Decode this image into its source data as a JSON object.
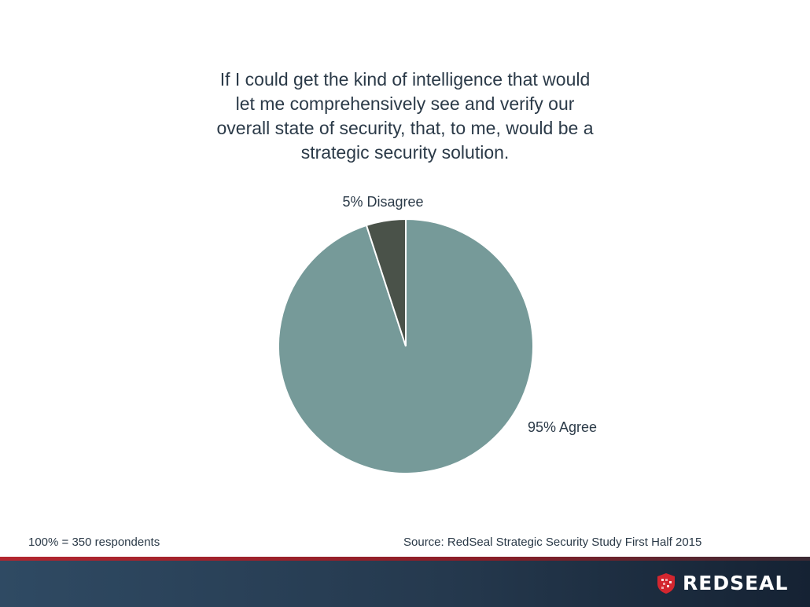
{
  "chart_data": {
    "type": "pie",
    "title": "If I could get the kind of intelligence that would let me comprehensively see and verify our overall state of security, that, to me, would be a strategic security solution.",
    "slices": [
      {
        "label": "Agree",
        "value": 95,
        "display": "95% Agree",
        "color": "#769a99"
      },
      {
        "label": "Disagree",
        "value": 5,
        "display": "5% Disagree",
        "color": "#4a5249"
      }
    ],
    "start": "12 o'clock",
    "direction": "clockwise"
  },
  "title_lines": [
    "If I could get the kind of intelligence that would",
    "let me comprehensively see and verify our",
    "overall state of security, that, to me, would be a",
    "strategic security solution."
  ],
  "footer": {
    "respondents": "100% = 350 respondents",
    "source": "Source: RedSeal Strategic Security Study First Half 2015"
  },
  "brand": {
    "logo_text": "REDSEAL",
    "logo_color": "#d3262f"
  }
}
